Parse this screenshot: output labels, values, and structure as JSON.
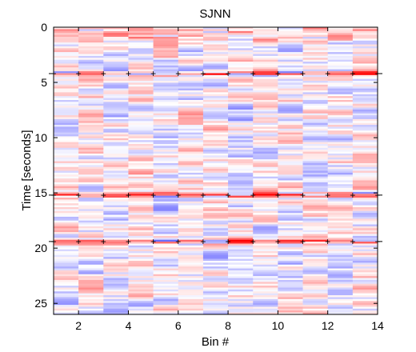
{
  "chart_data": {
    "type": "heatmap",
    "title": "SJNN",
    "xlabel": "Bin #",
    "ylabel": "Time [seconds]",
    "xlim": [
      1,
      14
    ],
    "ylim": [
      26,
      0
    ],
    "x_ticks": [
      2,
      4,
      6,
      8,
      10,
      12,
      14
    ],
    "y_ticks": [
      0,
      5,
      10,
      15,
      20,
      25
    ],
    "colormap": {
      "negative": "#0000ff",
      "zero": "#ffffff",
      "positive": "#ff0000"
    },
    "marker_symbol": "+",
    "marker_times": [
      4.2,
      15.2,
      19.4
    ],
    "grid": false,
    "legend": "none"
  }
}
